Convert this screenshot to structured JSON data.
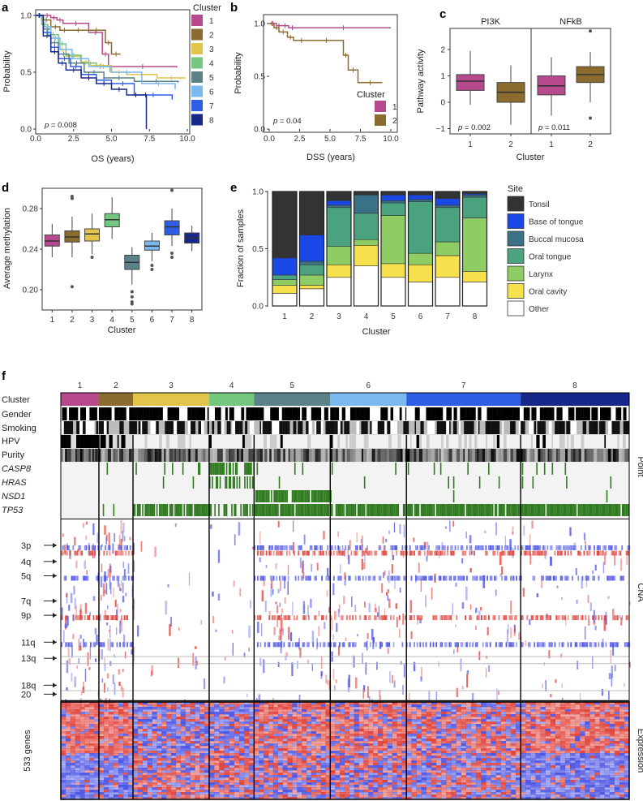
{
  "colors": {
    "cluster": [
      "#b64a8c",
      "#8b6b2e",
      "#e3c44a",
      "#74c77e",
      "#5b8288",
      "#7ab8f0",
      "#2f5ee6",
      "#16288a"
    ],
    "site": [
      "#333333",
      "#1a48e6",
      "#3a7186",
      "#4aa37e",
      "#8fcc63",
      "#f6e14c",
      "#ffffff"
    ],
    "mutation": "#2f7a1f",
    "cna_gain": "#e0453d",
    "cna_loss": "#4e56e4"
  },
  "chart_data": [
    {
      "panel": "a",
      "type": "line",
      "subtype": "kaplan-meier",
      "xlabel": "OS (years)",
      "ylabel": "Probability",
      "xlim": [
        0,
        10
      ],
      "ylim": [
        0,
        1
      ],
      "xticks": [
        "0.0",
        "2.5",
        "5.0",
        "7.5",
        "10.0"
      ],
      "yticks": [
        "0.0",
        "0.5",
        "1.0"
      ],
      "pvalue_label": "p",
      "pvalue_text": " = 0.008",
      "legend_title": "Cluster",
      "legend": [
        "1",
        "2",
        "3",
        "4",
        "5",
        "6",
        "7",
        "8"
      ],
      "series": [
        {
          "name": "1",
          "x": [
            0,
            0.5,
            1.0,
            1.4,
            1.8,
            3.5,
            4.4,
            4.8,
            9.3
          ],
          "y": [
            1.0,
            1.0,
            0.98,
            0.96,
            0.93,
            0.85,
            0.66,
            0.55,
            0.54
          ]
        },
        {
          "name": "2",
          "x": [
            0,
            0.4,
            1.0,
            1.6,
            2.2,
            3.4,
            4.6,
            5.0,
            5.6
          ],
          "y": [
            1.0,
            0.96,
            0.9,
            0.87,
            0.87,
            0.87,
            0.76,
            0.66,
            0.66
          ]
        },
        {
          "name": "3",
          "x": [
            0,
            0.5,
            1.0,
            1.5,
            2.0,
            3.0,
            3.6,
            5.0,
            6.0,
            8.0,
            9.9
          ],
          "y": [
            1.0,
            0.9,
            0.8,
            0.7,
            0.64,
            0.59,
            0.56,
            0.5,
            0.48,
            0.45,
            0.45
          ]
        },
        {
          "name": "4",
          "x": [
            0,
            0.4,
            0.8,
            1.5,
            2.0,
            3.0,
            4.0,
            4.9
          ],
          "y": [
            1.0,
            0.92,
            0.83,
            0.75,
            0.65,
            0.58,
            0.55,
            0.5
          ]
        },
        {
          "name": "5",
          "x": [
            0,
            0.5,
            1.0,
            1.5,
            2.2,
            3.2,
            4.5,
            6.5,
            9.4
          ],
          "y": [
            1.0,
            0.88,
            0.76,
            0.66,
            0.58,
            0.5,
            0.45,
            0.42,
            0.41
          ]
        },
        {
          "name": "6",
          "x": [
            0,
            0.5,
            1.0,
            1.6,
            2.4,
            3.5,
            5.0,
            7.0,
            9.2
          ],
          "y": [
            1.0,
            0.9,
            0.8,
            0.7,
            0.62,
            0.55,
            0.5,
            0.4,
            0.35
          ]
        },
        {
          "name": "7",
          "x": [
            0,
            0.5,
            1.0,
            1.5,
            2.3,
            3.0,
            4.0,
            5.0,
            6.5,
            9.0
          ],
          "y": [
            1.0,
            0.85,
            0.72,
            0.62,
            0.55,
            0.48,
            0.43,
            0.4,
            0.3,
            0.26
          ]
        },
        {
          "name": "8",
          "x": [
            0,
            0.5,
            1.0,
            1.5,
            2.0,
            3.0,
            4.0,
            5.0,
            6.0,
            7.2,
            7.3
          ],
          "y": [
            1.0,
            0.82,
            0.68,
            0.58,
            0.52,
            0.45,
            0.4,
            0.35,
            0.3,
            0.3,
            0.0
          ]
        }
      ]
    },
    {
      "panel": "b",
      "type": "line",
      "subtype": "kaplan-meier",
      "xlabel": "DSS (years)",
      "ylabel": "Probability",
      "xlim": [
        0,
        10
      ],
      "ylim": [
        0,
        1
      ],
      "xticks": [
        "0.0",
        "2.5",
        "5.0",
        "7.5",
        "10.0"
      ],
      "yticks": [
        "0.0",
        "0.5",
        "1.0"
      ],
      "pvalue_label": "p",
      "pvalue_text": " = 0.04",
      "legend_title": "Cluster",
      "legend": [
        "1",
        "2"
      ],
      "series": [
        {
          "name": "1",
          "x": [
            0,
            0.6,
            1.0,
            1.6,
            2.2,
            10.0
          ],
          "y": [
            1.0,
            0.98,
            0.98,
            0.96,
            0.96,
            0.96
          ]
        },
        {
          "name": "2",
          "x": [
            0,
            0.4,
            0.8,
            1.5,
            2.0,
            3.3,
            6.1,
            6.5,
            7.3,
            9.3
          ],
          "y": [
            1.0,
            0.96,
            0.92,
            0.87,
            0.84,
            0.84,
            0.7,
            0.56,
            0.44,
            0.44
          ]
        }
      ]
    },
    {
      "panel": "c",
      "type": "box",
      "facets": [
        "PI3K",
        "NFkB"
      ],
      "xlabel": "Cluster",
      "ylabel": "Pathway activity",
      "ylim": [
        -1.2,
        2.8
      ],
      "yticks": [
        "−1",
        "0",
        "1",
        "2"
      ],
      "ytick_values": [
        -1,
        0,
        1,
        2
      ],
      "categories": [
        "1",
        "2"
      ],
      "pvalues": [
        {
          "label": "p",
          "text": " = 0.002"
        },
        {
          "label": "p",
          "text": " = 0.011"
        }
      ],
      "boxes": [
        {
          "facet": "PI3K",
          "cluster": "1",
          "min": -0.1,
          "q1": 0.45,
          "median": 0.8,
          "q3": 1.05,
          "max": 1.95,
          "outliers": []
        },
        {
          "facet": "PI3K",
          "cluster": "2",
          "min": -0.85,
          "q1": 0.0,
          "median": 0.38,
          "q3": 0.75,
          "max": 1.4,
          "outliers": []
        },
        {
          "facet": "NFkB",
          "cluster": "1",
          "min": -0.5,
          "q1": 0.28,
          "median": 0.62,
          "q3": 1.0,
          "max": 1.7,
          "outliers": []
        },
        {
          "facet": "NFkB",
          "cluster": "2",
          "min": 0.0,
          "q1": 0.75,
          "median": 1.05,
          "q3": 1.35,
          "max": 1.9,
          "outliers": [
            2.7,
            -0.6
          ]
        }
      ]
    },
    {
      "panel": "d",
      "type": "box",
      "xlabel": "Cluster",
      "ylabel": "Average methylation",
      "ylim": [
        0.18,
        0.3
      ],
      "yticks": [
        "0.20",
        "0.24",
        "0.28"
      ],
      "ytick_values": [
        0.2,
        0.24,
        0.28
      ],
      "categories": [
        "1",
        "2",
        "3",
        "4",
        "5",
        "6",
        "7",
        "8"
      ],
      "boxes": [
        {
          "cluster": "1",
          "min": 0.232,
          "q1": 0.243,
          "median": 0.248,
          "q3": 0.254,
          "max": 0.265,
          "outliers": []
        },
        {
          "cluster": "2",
          "min": 0.232,
          "q1": 0.247,
          "median": 0.252,
          "q3": 0.258,
          "max": 0.272,
          "outliers": [
            0.29,
            0.292,
            0.203
          ]
        },
        {
          "cluster": "3",
          "min": 0.235,
          "q1": 0.248,
          "median": 0.255,
          "q3": 0.26,
          "max": 0.275,
          "outliers": [
            0.232
          ]
        },
        {
          "cluster": "4",
          "min": 0.25,
          "q1": 0.262,
          "median": 0.269,
          "q3": 0.275,
          "max": 0.291,
          "outliers": []
        },
        {
          "cluster": "5",
          "min": 0.205,
          "q1": 0.22,
          "median": 0.227,
          "q3": 0.234,
          "max": 0.242,
          "outliers": [
            0.198,
            0.193,
            0.188,
            0.186
          ]
        },
        {
          "cluster": "6",
          "min": 0.228,
          "q1": 0.239,
          "median": 0.243,
          "q3": 0.248,
          "max": 0.256,
          "outliers": [
            0.224,
            0.22
          ]
        },
        {
          "cluster": "7",
          "min": 0.243,
          "q1": 0.254,
          "median": 0.262,
          "q3": 0.268,
          "max": 0.28,
          "outliers": [
            0.298,
            0.236,
            0.232
          ]
        },
        {
          "cluster": "8",
          "min": 0.238,
          "q1": 0.246,
          "median": 0.251,
          "q3": 0.256,
          "max": 0.263,
          "outliers": []
        }
      ]
    },
    {
      "panel": "e",
      "type": "bar",
      "stacked": true,
      "xlabel": "Cluster",
      "ylabel": "Fraction of samples",
      "ylim": [
        0,
        1
      ],
      "yticks": [
        "0.0",
        "0.5",
        "1.0"
      ],
      "ytick_values": [
        0,
        0.5,
        1
      ],
      "categories": [
        "1",
        "2",
        "3",
        "4",
        "5",
        "6",
        "7",
        "8"
      ],
      "legend_title": "Site",
      "series": [
        {
          "name": "Other",
          "values": [
            0.11,
            0.15,
            0.25,
            0.35,
            0.25,
            0.21,
            0.25,
            0.21
          ]
        },
        {
          "name": "Oral cavity",
          "values": [
            0.07,
            0.03,
            0.11,
            0.18,
            0.12,
            0.15,
            0.19,
            0.09
          ]
        },
        {
          "name": "Larynx",
          "values": [
            0.05,
            0.09,
            0.16,
            0.05,
            0.42,
            0.1,
            0.12,
            0.47
          ]
        },
        {
          "name": "Oral tongue",
          "values": [
            0.04,
            0.09,
            0.34,
            0.23,
            0.11,
            0.45,
            0.3,
            0.18
          ]
        },
        {
          "name": "Buccal mucosa",
          "values": [
            0.0,
            0.03,
            0.02,
            0.16,
            0.02,
            0.02,
            0.02,
            0.02
          ]
        },
        {
          "name": "Base of tongue",
          "values": [
            0.15,
            0.23,
            0.04,
            0.0,
            0.05,
            0.04,
            0.06,
            0.01
          ]
        },
        {
          "name": "Tonsil",
          "values": [
            0.58,
            0.38,
            0.08,
            0.03,
            0.03,
            0.03,
            0.06,
            0.02
          ]
        }
      ],
      "legend": [
        "Tonsil",
        "Base of tongue",
        "Buccal mucosa",
        "Oral tongue",
        "Larynx",
        "Oral cavity",
        "Other"
      ]
    },
    {
      "panel": "f",
      "type": "heatmap",
      "clusters": [
        "1",
        "2",
        "3",
        "4",
        "5",
        "6",
        "7",
        "8"
      ],
      "cluster_fractions": [
        0.067,
        0.06,
        0.134,
        0.079,
        0.134,
        0.134,
        0.201,
        0.191
      ],
      "annotation_rows": [
        "Cluster",
        "Gender",
        "Smoking",
        "HPV",
        "Purity"
      ],
      "mutation_genes": [
        "CASP8",
        "HRAS",
        "NSD1",
        "TP53"
      ],
      "mutation_fraction": [
        [
          0.02,
          0.0,
          0.0,
          0.0
        ],
        [
          0.02,
          0.0,
          0.0,
          0.02
        ],
        [
          0.1,
          0.04,
          0.0,
          0.9
        ],
        [
          0.6,
          0.4,
          0.0,
          0.5
        ],
        [
          0.03,
          0.02,
          0.85,
          0.95
        ],
        [
          0.06,
          0.03,
          0.01,
          0.9
        ],
        [
          0.05,
          0.03,
          0.01,
          0.95
        ],
        [
          0.05,
          0.03,
          0.01,
          0.95
        ]
      ],
      "section_labels": {
        "point": "Point",
        "cna": "CNA",
        "expression": "Expression"
      },
      "cna_arms": [
        "3p",
        "4q",
        "5q",
        "7q",
        "9p",
        "11q",
        "13q",
        "18q",
        "20"
      ],
      "cna_arm_positions": [
        0.14,
        0.23,
        0.31,
        0.45,
        0.53,
        0.68,
        0.77,
        0.92,
        0.97
      ],
      "expression_label": "533 genes"
    }
  ]
}
